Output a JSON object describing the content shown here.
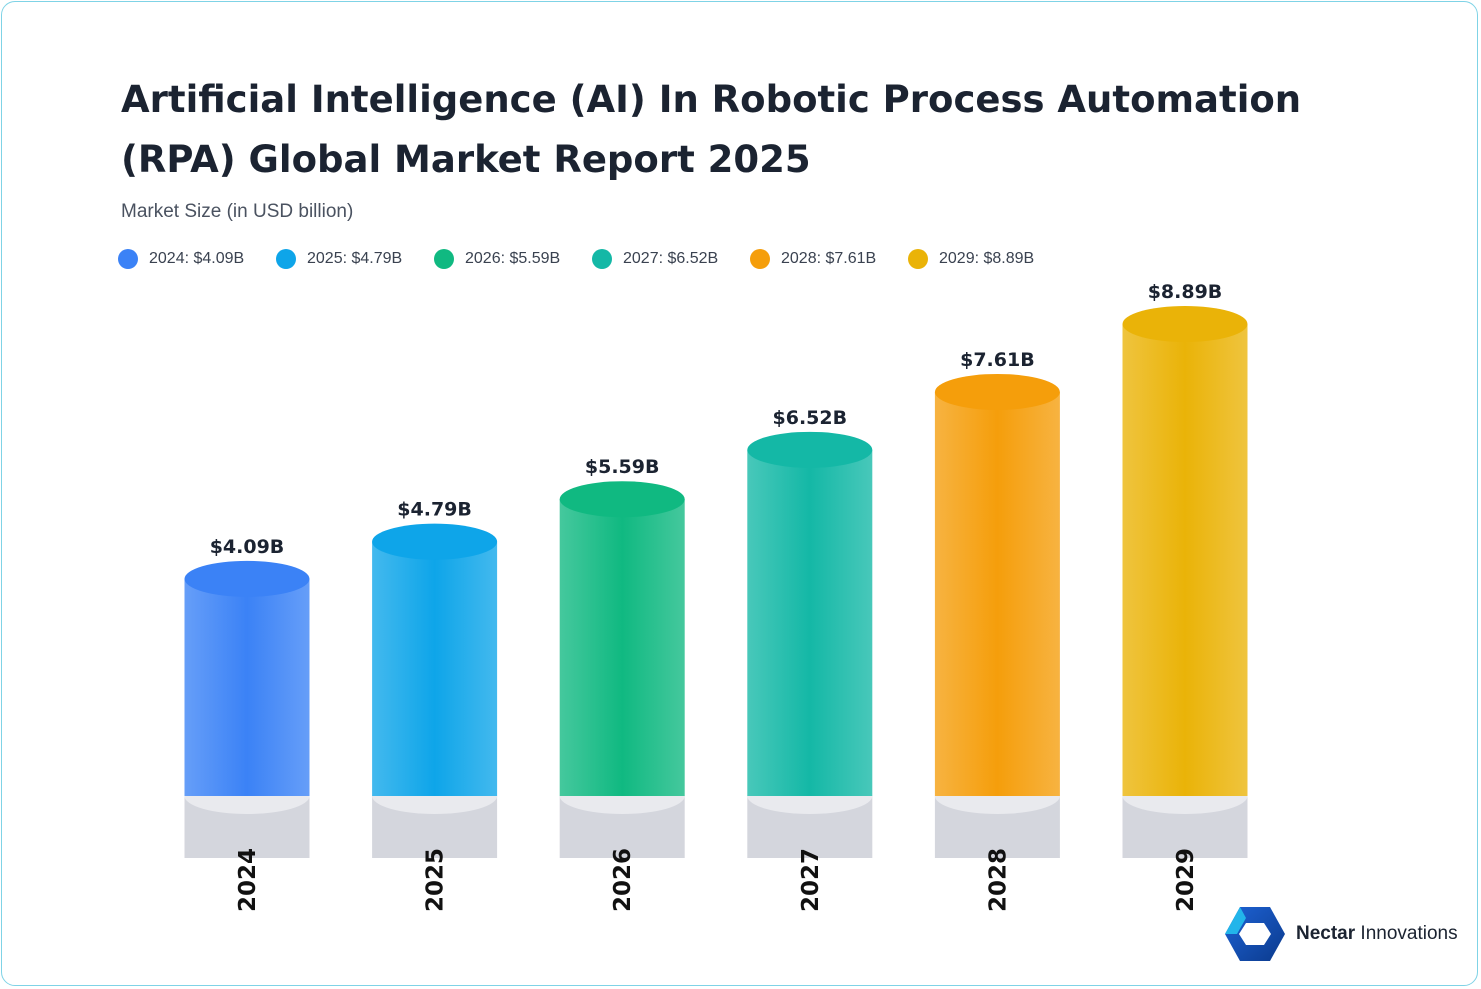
{
  "title": "Artificial Intelligence (AI) In Robotic Process Automation (RPA) Global Market Report 2025",
  "subtitle": "Market Size (in USD billion)",
  "legend": [
    {
      "label": "2024: $4.09B",
      "color": "#3b82f6"
    },
    {
      "label": "2025: $4.79B",
      "color": "#0ea5e9"
    },
    {
      "label": "2026: $5.59B",
      "color": "#10b981"
    },
    {
      "label": "2027: $6.52B",
      "color": "#14b8a6"
    },
    {
      "label": "2028: $7.61B",
      "color": "#f59e0b"
    },
    {
      "label": "2029: $8.89B",
      "color": "#eab308"
    }
  ],
  "chart_data": {
    "type": "bar",
    "title": "Artificial Intelligence (AI) In Robotic Process Automation (RPA) Global Market Report 2025",
    "subtitle": "Market Size (in USD billion)",
    "categories": [
      "2024",
      "2025",
      "2026",
      "2027",
      "2028",
      "2029"
    ],
    "values": [
      4.09,
      4.79,
      5.59,
      6.52,
      7.61,
      8.89
    ],
    "value_labels": [
      "$4.09B",
      "$4.79B",
      "$5.59B",
      "$6.52B",
      "$7.61B",
      "$8.89B"
    ],
    "colors": [
      "#3b82f6",
      "#0ea5e9",
      "#10b981",
      "#14b8a6",
      "#f59e0b",
      "#eab308"
    ],
    "ylim": [
      0,
      8.89
    ],
    "grid": false,
    "legend_position": "top-left"
  },
  "logo": {
    "brand": "Nectar",
    "suffix": " Innovations"
  }
}
